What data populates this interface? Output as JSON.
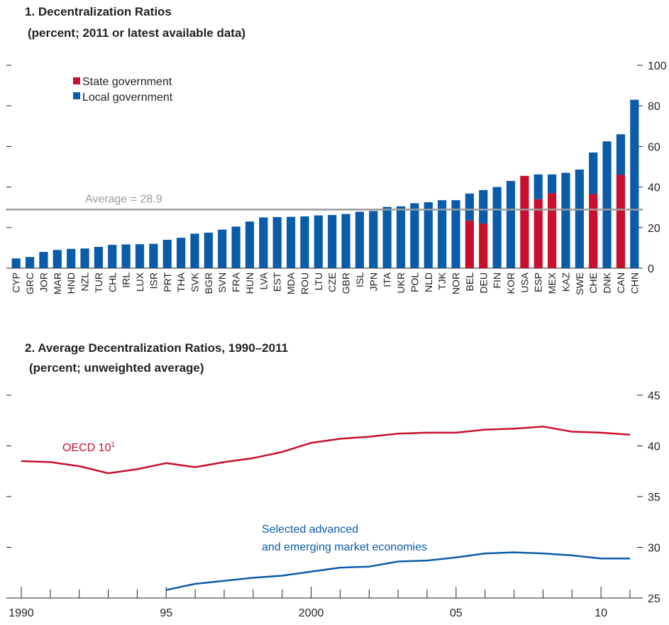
{
  "chart_data": [
    {
      "type": "bar",
      "stacked": true,
      "title": "1. Decentralization Ratios",
      "subtitle": "(percent; 2011 or latest available data)",
      "categories": [
        "CYP",
        "GRC",
        "JOR",
        "MAR",
        "HND",
        "NZL",
        "TUR",
        "CHL",
        "IRL",
        "LUX",
        "ISR",
        "PRT",
        "THA",
        "SVK",
        "BGR",
        "SVN",
        "FRA",
        "HUN",
        "LVA",
        "EST",
        "MDA",
        "ROU",
        "LTU",
        "CZE",
        "GBR",
        "ISL",
        "JPN",
        "ITA",
        "UKR",
        "POL",
        "NLD",
        "TJK",
        "NOR",
        "BEL",
        "DEU",
        "FIN",
        "KOR",
        "USA",
        "ESP",
        "MEX",
        "KAZ",
        "SWE",
        "CHE",
        "DNK",
        "CAN",
        "CHN"
      ],
      "series": [
        {
          "name": "State government",
          "color": "#c8102e",
          "values": [
            0,
            0,
            0,
            0,
            0,
            0,
            0,
            0,
            0,
            0,
            0,
            0,
            0,
            0,
            0,
            0,
            0,
            0,
            0,
            0,
            0,
            0,
            0,
            0,
            0,
            0,
            0,
            0,
            0,
            0,
            0,
            0,
            0,
            23.5,
            22,
            0,
            0,
            45.5,
            34,
            37,
            0,
            0,
            36.5,
            0,
            46,
            0
          ]
        },
        {
          "name": "Local government",
          "color": "#0a5ba8",
          "values": [
            4.8,
            5.5,
            8,
            9,
            9.5,
            9.7,
            10.5,
            11.5,
            11.7,
            11.8,
            12,
            14,
            15,
            17,
            17.5,
            19,
            20.5,
            23,
            25,
            25.2,
            25.3,
            25.5,
            26,
            26.2,
            26.7,
            27.8,
            28.2,
            30.2,
            30.5,
            32,
            32.5,
            33.5,
            33.5,
            13.3,
            16.5,
            40,
            43,
            0,
            12.2,
            9.2,
            47,
            48.6,
            20.5,
            62.5,
            20,
            83
          ]
        }
      ],
      "average_line": {
        "value": 28.9,
        "label": "Average = 28.9",
        "color": "#9b9b9b"
      },
      "y_ticks": [
        "0",
        "20",
        "40",
        "60",
        "80",
        "100"
      ],
      "ylim": [
        0,
        100
      ],
      "legend_position": "top-left"
    },
    {
      "type": "line",
      "title": "2. Average Decentralization Ratios, 1990–2011",
      "subtitle": "(percent; unweighted average)",
      "x": [
        1990,
        1991,
        1992,
        1993,
        1994,
        1995,
        1996,
        1997,
        1998,
        1999,
        2000,
        2001,
        2002,
        2003,
        2004,
        2005,
        2006,
        2007,
        2008,
        2009,
        2010,
        2011
      ],
      "x_tick_labels": [
        "1990",
        "95",
        "2000",
        "05",
        "10"
      ],
      "x_tick_values": [
        1990,
        1995,
        2000,
        2005,
        2010
      ],
      "series": [
        {
          "name": "OECD 10",
          "name_superscript": "1",
          "color": "#c8102e",
          "values": [
            38.5,
            38.4,
            38.0,
            37.3,
            37.7,
            38.3,
            37.9,
            38.4,
            38.8,
            39.4,
            40.3,
            40.7,
            40.9,
            41.2,
            41.3,
            41.3,
            41.6,
            41.7,
            41.9,
            41.4,
            41.3,
            41.1
          ]
        },
        {
          "name_lines": [
            "Selected advanced",
            "and emerging market economies"
          ],
          "color": "#0a5ba8",
          "values": [
            null,
            null,
            null,
            null,
            null,
            25.8,
            26.4,
            26.7,
            27.0,
            27.2,
            27.6,
            28.0,
            28.1,
            28.6,
            28.7,
            29.0,
            29.4,
            29.5,
            29.4,
            29.2,
            28.9,
            28.9
          ]
        }
      ],
      "y_ticks": [
        "25",
        "30",
        "35",
        "40",
        "45"
      ],
      "ylim": [
        25,
        45
      ],
      "xlim": [
        1990,
        2011
      ]
    }
  ]
}
